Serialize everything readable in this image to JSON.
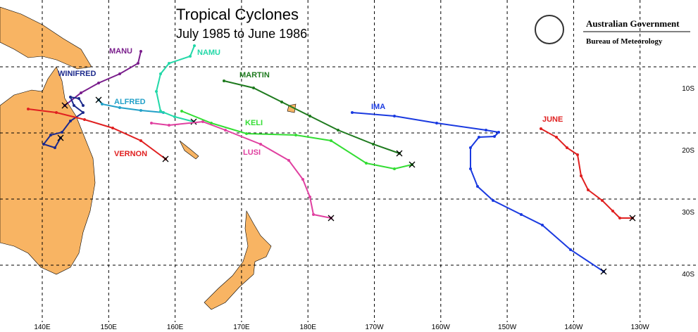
{
  "header": {
    "title": "Tropical Cyclones",
    "subtitle": "July 1985 to June 1986",
    "agency": "Australian Government",
    "bureau": "Bureau of Meteorology"
  },
  "cyclones": [
    {
      "name": "MANU",
      "color": "#7a1e8c"
    },
    {
      "name": "WINIFRED",
      "color": "#1c2a8c"
    },
    {
      "name": "ALFRED",
      "color": "#22a0c8"
    },
    {
      "name": "NAMU",
      "color": "#22d8a8"
    },
    {
      "name": "MARTIN",
      "color": "#1e7a1e"
    },
    {
      "name": "KELI",
      "color": "#33dd33"
    },
    {
      "name": "LUSI",
      "color": "#e040a0"
    },
    {
      "name": "VERNON",
      "color": "#e02020"
    },
    {
      "name": "IMA",
      "color": "#1a3ae0"
    },
    {
      "name": "JUNE",
      "color": "#e02020"
    }
  ],
  "longitude_labels": [
    "140E",
    "150E",
    "160E",
    "170E",
    "180E",
    "170W",
    "160W",
    "150W",
    "140W",
    "130W"
  ],
  "latitude_labels": [
    "10S",
    "20S",
    "30S",
    "40S"
  ]
}
